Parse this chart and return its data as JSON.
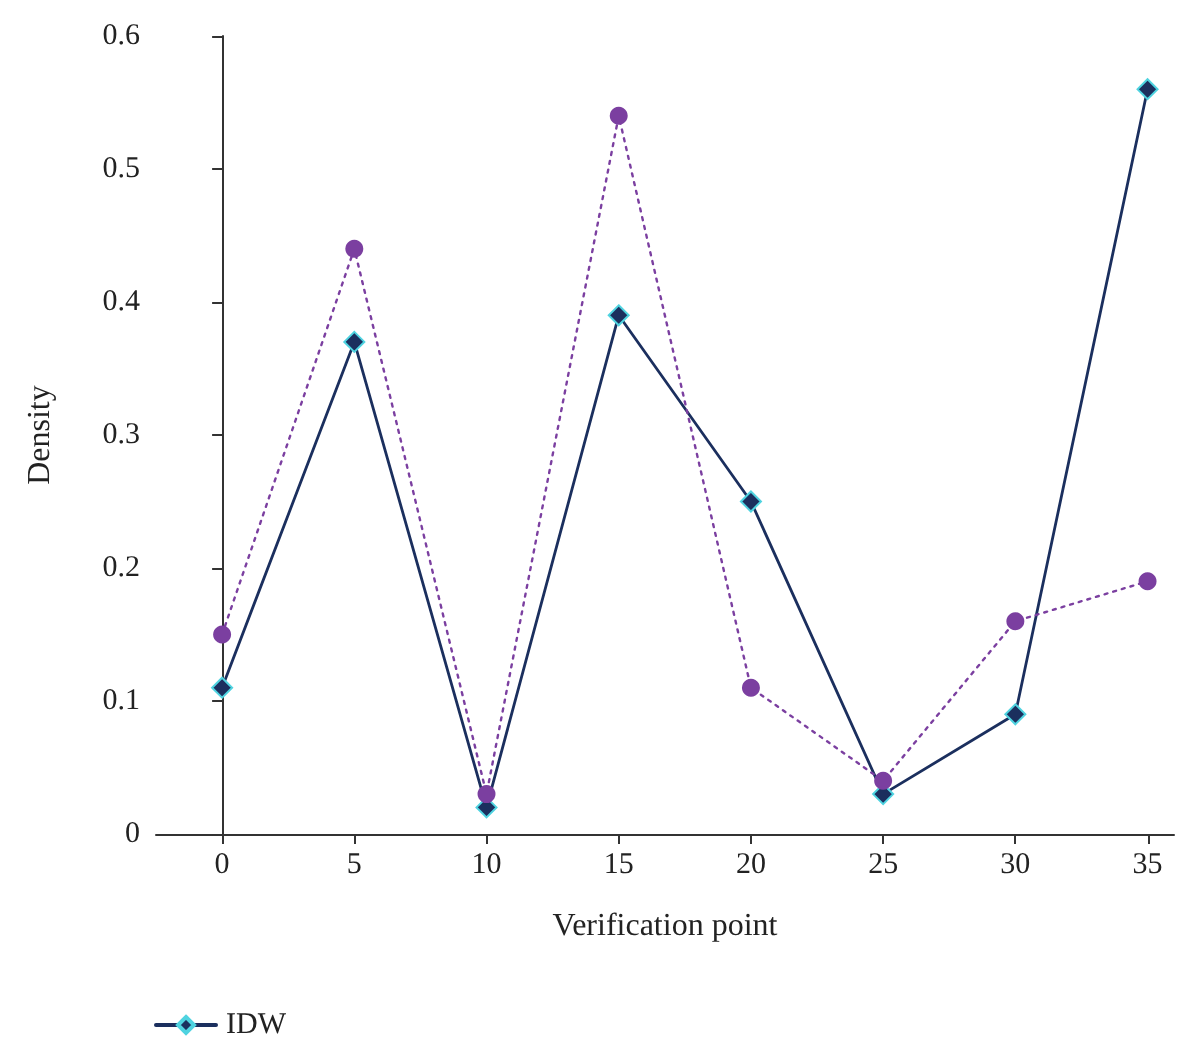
{
  "chart_data": {
    "type": "line",
    "xlabel": "Verification point",
    "ylabel": "Density",
    "x": [
      0,
      5,
      10,
      15,
      20,
      25,
      30,
      35
    ],
    "series": [
      {
        "name": "IDW",
        "color": "#1b2f5e",
        "values": [
          0.11,
          0.37,
          0.02,
          0.39,
          0.25,
          0.03,
          0.09,
          0.56
        ],
        "marker": "diamond",
        "line_style": "solid"
      },
      {
        "color": "#7b3fa0",
        "values": [
          0.15,
          0.44,
          0.03,
          0.54,
          0.11,
          0.04,
          0.16,
          0.19
        ],
        "marker": "circle",
        "line_style": "dotted"
      }
    ],
    "xlim": [
      -2.5,
      36
    ],
    "xticks": [
      0,
      5,
      10,
      15,
      20,
      25,
      30,
      35
    ],
    "ylim": [
      0,
      0.6
    ],
    "yticks": [
      0,
      0.1,
      0.2,
      0.3,
      0.4,
      0.5,
      0.6
    ],
    "legend": "bottom left"
  }
}
